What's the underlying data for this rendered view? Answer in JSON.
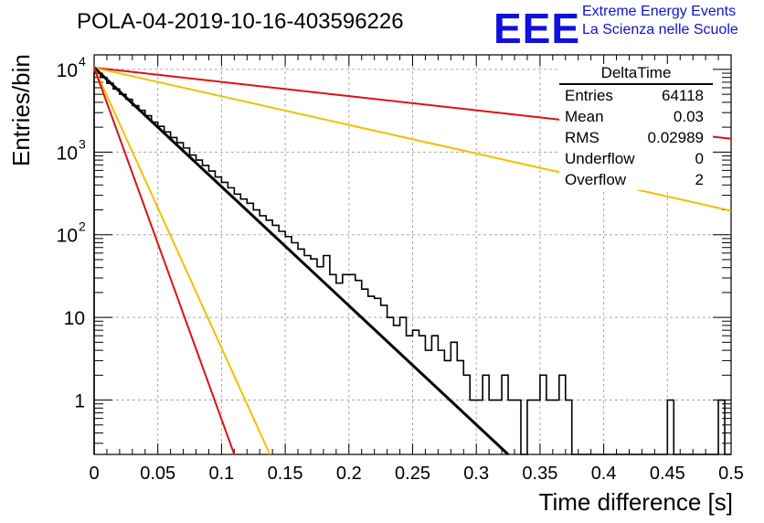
{
  "header": {
    "title": "POLA-04-2019-10-16-403596226",
    "logo_text": "EEE",
    "logo_line1": "Extreme Energy Events",
    "logo_line2": "La Scienza nelle Scuole"
  },
  "stats_box": {
    "title": "DeltaTime",
    "rows": [
      {
        "label": "Entries",
        "value": "64118"
      },
      {
        "label": "Mean",
        "value": "0.03"
      },
      {
        "label": "RMS",
        "value": "0.02989"
      },
      {
        "label": "Underflow",
        "value": "0"
      },
      {
        "label": "Overflow",
        "value": "2"
      }
    ]
  },
  "colors": {
    "histogram": "#000000",
    "fit": "#000000",
    "red": "#e01010",
    "orange": "#f5c000",
    "logo": "#1010e0"
  },
  "chart_data": {
    "type": "line",
    "title": "POLA-04-2019-10-16-403596226",
    "xlabel": "Time difference [s]",
    "ylabel": "Entries/bin",
    "xlim": [
      0,
      0.5
    ],
    "ylim": [
      0.22,
      15000
    ],
    "yscale": "log",
    "grid": true,
    "x_ticks": [
      "0",
      "0.05",
      "0.1",
      "0.15",
      "0.2",
      "0.25",
      "0.3",
      "0.35",
      "0.4",
      "0.45",
      "0.5"
    ],
    "y_ticks": [
      {
        "base": "1",
        "exp": "",
        "value": 1
      },
      {
        "base": "10",
        "exp": "",
        "value": 10
      },
      {
        "base": "10",
        "exp": "2",
        "value": 100
      },
      {
        "base": "10",
        "exp": "3",
        "value": 1000
      },
      {
        "base": "10",
        "exp": "4",
        "value": 10000
      }
    ],
    "histogram": {
      "bin_width": 0.005,
      "values": [
        9000,
        8000,
        6800,
        5800,
        5000,
        4350,
        3650,
        3200,
        2750,
        2300,
        2050,
        1750,
        1500,
        1300,
        1120,
        920,
        800,
        690,
        590,
        500,
        430,
        370,
        310,
        270,
        240,
        200,
        170,
        150,
        130,
        110,
        95,
        80,
        67,
        56,
        51,
        41,
        56,
        33,
        26,
        33,
        33,
        28,
        22,
        18,
        17,
        14,
        10,
        8,
        10,
        6,
        7,
        6,
        4,
        6,
        4,
        3,
        5,
        3,
        2,
        1,
        1,
        2,
        1,
        1,
        2,
        1,
        1,
        0,
        1,
        1,
        2,
        1,
        1,
        2,
        1,
        0,
        0,
        0,
        0,
        0,
        0,
        0,
        0,
        0,
        0,
        0,
        0,
        0,
        0,
        0,
        1,
        0,
        0,
        0,
        0,
        0,
        0,
        0,
        1,
        0
      ]
    },
    "lines": [
      {
        "color": "red",
        "x": [
          0,
          0.5
        ],
        "y": [
          10500,
          1450
        ]
      },
      {
        "color": "orange",
        "x": [
          0,
          0.5
        ],
        "y": [
          10500,
          195
        ]
      },
      {
        "color": "black",
        "x": [
          0,
          0.325
        ],
        "y": [
          10500,
          0.22
        ]
      },
      {
        "color": "orange",
        "x": [
          0,
          0.138
        ],
        "y": [
          10500,
          0.22
        ]
      },
      {
        "color": "red",
        "x": [
          0,
          0.11
        ],
        "y": [
          10500,
          0.22
        ]
      }
    ]
  }
}
